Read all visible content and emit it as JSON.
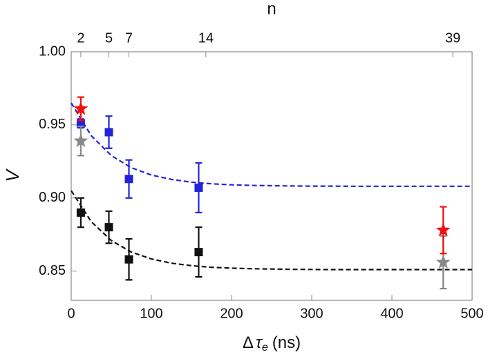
{
  "chart_data": {
    "type": "scatter",
    "x_label": {
      "delta": "Δ",
      "symbol": "τ",
      "sub": "e",
      "unit": "(ns)"
    },
    "y_label": "V",
    "top_label": "n",
    "xlim": [
      0,
      500
    ],
    "xticks": [
      0,
      100,
      200,
      300,
      400,
      500
    ],
    "ylim": [
      0.83,
      1.0
    ],
    "yticks": [
      0.85,
      {
        "value": 0.9,
        "label": "0.90"
      },
      0.95,
      {
        "value": 1.0,
        "label": "1.00"
      }
    ],
    "top_ticks": [
      {
        "value": 12,
        "label": "2"
      },
      {
        "value": 47,
        "label": "5"
      },
      {
        "value": 72,
        "label": "7"
      },
      {
        "value": 168,
        "label": "14"
      },
      {
        "value": 476,
        "label": "39"
      }
    ],
    "fits": [
      {
        "color": "#2222dd",
        "x": [
          0,
          25,
          50,
          75,
          100,
          125,
          150,
          175,
          200,
          225,
          250,
          275,
          300,
          325,
          350,
          375,
          400,
          425,
          450,
          475,
          500
        ],
        "values": [
          0.965,
          0.9426,
          0.929,
          0.9207,
          0.9157,
          0.9127,
          0.9108,
          0.9097,
          0.909,
          0.9086,
          0.9084,
          0.9082,
          0.9081,
          0.9081,
          0.908,
          0.908,
          0.908,
          0.908,
          0.908,
          0.908,
          0.908
        ]
      },
      {
        "color": "#111111",
        "x": [
          0,
          25,
          50,
          75,
          100,
          125,
          150,
          175,
          200,
          225,
          250,
          275,
          300,
          325,
          350,
          375,
          400,
          425,
          450,
          475,
          500
        ],
        "values": [
          0.905,
          0.8838,
          0.8709,
          0.863,
          0.8583,
          0.8554,
          0.8537,
          0.8526,
          0.852,
          0.8516,
          0.8514,
          0.8512,
          0.8511,
          0.851,
          0.851,
          0.851,
          0.851,
          0.851,
          0.851,
          0.851,
          0.851
        ]
      }
    ],
    "series": [
      {
        "color": "#2222dd",
        "marker": "square",
        "x": [
          12,
          47,
          72,
          159
        ],
        "values": [
          0.951,
          0.945,
          0.913,
          0.907
        ],
        "errors": [
          0.003,
          0.011,
          0.013,
          0.017
        ]
      },
      {
        "color": "#111111",
        "marker": "square",
        "x": [
          12,
          47,
          72,
          159
        ],
        "values": [
          0.89,
          0.88,
          0.858,
          0.863
        ],
        "errors": [
          0.01,
          0.011,
          0.014,
          0.017
        ]
      },
      {
        "color": "#888888",
        "marker": "star",
        "x": [
          12,
          464
        ],
        "values": [
          0.939,
          0.856
        ],
        "errors": [
          0.01,
          0.018
        ]
      },
      {
        "color": "#ee1111",
        "marker": "star",
        "x": [
          12,
          464
        ],
        "values": [
          0.961,
          0.878
        ],
        "errors": [
          0.008,
          0.016
        ]
      }
    ]
  }
}
